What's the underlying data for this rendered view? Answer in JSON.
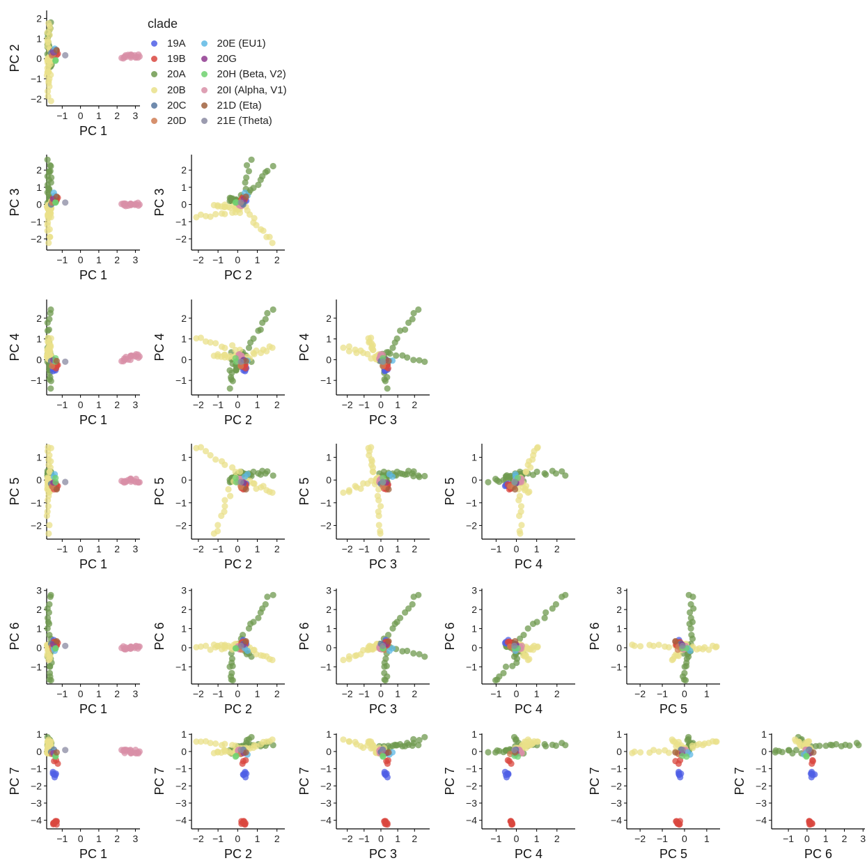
{
  "chart_data": {
    "type": "scatter",
    "layout": "lower-triangle pairs matrix",
    "legend": {
      "title": "clade",
      "placement": "top",
      "items": [
        {
          "name": "19A",
          "color": "#4f5fe6"
        },
        {
          "name": "19B",
          "color": "#d9473f"
        },
        {
          "name": "20A",
          "color": "#6f9a4f"
        },
        {
          "name": "20B",
          "color": "#e9e08a"
        },
        {
          "name": "20C",
          "color": "#56759f"
        },
        {
          "name": "20D",
          "color": "#cf7d54"
        },
        {
          "name": "20E (EU1)",
          "color": "#5eb8e4"
        },
        {
          "name": "20G",
          "color": "#8f3a8f"
        },
        {
          "name": "20H (Beta, V2)",
          "color": "#6fd16f"
        },
        {
          "name": "20I (Alpha, V1)",
          "color": "#d88fa7"
        },
        {
          "name": "21D (Eta)",
          "color": "#a0623d"
        },
        {
          "name": "21E (Theta)",
          "color": "#8a8aa1"
        }
      ]
    },
    "axes": {
      "PC 1": {
        "label": "PC 1",
        "lim": [
          -1.85,
          3.25
        ],
        "ticks": [
          -1,
          0,
          1,
          2,
          3
        ]
      },
      "PC 2": {
        "label": "PC 2",
        "lim": [
          -2.35,
          2.4
        ],
        "ticks": [
          -2,
          -1,
          0,
          1,
          2
        ]
      },
      "PC 3": {
        "label": "PC 3",
        "lim": [
          -2.65,
          2.9
        ],
        "ticks": [
          -2,
          -1,
          0,
          1,
          2
        ]
      },
      "PC 4": {
        "label": "PC 4",
        "lim": [
          -1.7,
          2.9
        ],
        "ticks": [
          -1,
          0,
          1,
          2
        ]
      },
      "PC 5": {
        "label": "PC 5",
        "lim": [
          -2.6,
          1.6
        ],
        "ticks": [
          -2,
          -1,
          0,
          1
        ]
      },
      "PC 6": {
        "label": "PC 6",
        "lim": [
          -1.9,
          3.1
        ],
        "ticks": [
          -1,
          0,
          1,
          2,
          3
        ]
      },
      "PC 7": {
        "label": "PC 7",
        "lim": [
          -4.5,
          1.05
        ],
        "ticks": [
          -4,
          -3,
          -2,
          -1,
          0,
          1
        ]
      }
    },
    "clusters": [
      {
        "clade": "20A",
        "centroid": [
          -1.7,
          0.0,
          0.0,
          0.0,
          0.3,
          0.2,
          0.4
        ],
        "arm": [
          0.0,
          1.75,
          2.2,
          2.4,
          0.0,
          2.6,
          0.0
        ],
        "n": 12
      },
      {
        "clade": "20A",
        "centroid": [
          -1.6,
          -0.3,
          0.3,
          0.3,
          0.0,
          -0.4,
          0.0
        ],
        "arm": [
          0.0,
          0.0,
          0.0,
          -1.6,
          0.0,
          -1.5,
          0.0
        ],
        "n": 10
      },
      {
        "clade": "20A",
        "centroid": [
          -1.7,
          0.2,
          0.1,
          0.3,
          0.2,
          0.0,
          0.1
        ],
        "arm": [
          0.0,
          0.4,
          2.5,
          -0.3,
          0.0,
          -0.4,
          0.7
        ],
        "n": 8
      },
      {
        "clade": "20A",
        "centroid": [
          -1.65,
          0.0,
          0.2,
          -0.1,
          0.1,
          0.1,
          0.1
        ],
        "arm": [
          0.0,
          0.0,
          0.0,
          -0.5,
          0.0,
          0.0,
          0.0
        ],
        "n": 10
      },
      {
        "clade": "20B",
        "centroid": [
          -1.7,
          0.1,
          -0.4,
          0.5,
          0.3,
          0.0,
          0.2
        ],
        "arm": [
          0.0,
          -2.1,
          -0.3,
          0.5,
          1.2,
          0.0,
          0.4
        ],
        "n": 10
      },
      {
        "clade": "20B",
        "centroid": [
          -1.75,
          -0.3,
          -0.1,
          0.2,
          -0.1,
          0.1,
          0.0
        ],
        "arm": [
          0.0,
          -0.8,
          0.0,
          0.0,
          -2.3,
          0.0,
          0.0
        ],
        "n": 10
      },
      {
        "clade": "20B",
        "centroid": [
          -1.7,
          0.2,
          0.1,
          0.0,
          0.0,
          0.2,
          0.1
        ],
        "arm": [
          0.0,
          1.5,
          -2.3,
          0.6,
          -0.5,
          -0.8,
          0.5
        ],
        "n": 12
      },
      {
        "clade": "20B",
        "centroid": [
          -1.7,
          0.0,
          -0.2,
          0.1,
          0.0,
          0.1,
          0.0
        ],
        "arm": [
          0.0,
          0.0,
          0.0,
          0.0,
          0.0,
          0.0,
          0.0
        ],
        "n": 14
      },
      {
        "clade": "20I (Alpha, V1)",
        "centroid": [
          2.3,
          0.1,
          0.0,
          0.0,
          0.0,
          0.0,
          0.0
        ],
        "arm": [
          0.9,
          0.0,
          0.0,
          0.2,
          0.0,
          0.0,
          0.0
        ],
        "n": 18
      },
      {
        "clade": "19A",
        "centroid": [
          -1.45,
          0.35,
          0.3,
          -0.45,
          -0.2,
          0.3,
          -1.25
        ],
        "arm": [
          0.0,
          0.0,
          0.0,
          0.0,
          0.0,
          0.0,
          -0.2
        ],
        "n": 6
      },
      {
        "clade": "19B",
        "centroid": [
          -1.4,
          0.3,
          0.3,
          -0.3,
          -0.3,
          0.2,
          -4.05
        ],
        "arm": [
          0.0,
          0.0,
          0.0,
          0.0,
          0.0,
          0.0,
          -0.2
        ],
        "n": 8
      },
      {
        "clade": "19B",
        "centroid": [
          -1.35,
          0.35,
          0.4,
          -0.35,
          -0.3,
          0.35,
          -0.6
        ],
        "arm": [
          0.0,
          0.0,
          0.0,
          0.0,
          0.0,
          0.0,
          0.0
        ],
        "n": 3
      },
      {
        "clade": "20C",
        "centroid": [
          -1.5,
          0.2,
          0.1,
          -0.1,
          -0.1,
          0.1,
          0.0
        ],
        "arm": [
          0.0,
          0.0,
          0.0,
          0.0,
          0.0,
          0.0,
          0.0
        ],
        "n": 2
      },
      {
        "clade": "20D",
        "centroid": [
          -1.5,
          0.1,
          0.2,
          -0.2,
          -0.2,
          0.0,
          -0.2
        ],
        "arm": [
          0.0,
          0.0,
          0.0,
          0.0,
          0.0,
          0.0,
          0.0
        ],
        "n": 2
      },
      {
        "clade": "20E (EU1)",
        "centroid": [
          -1.5,
          0.4,
          0.6,
          -0.1,
          0.2,
          -0.1,
          -0.1
        ],
        "arm": [
          0.0,
          0.0,
          0.0,
          0.0,
          0.0,
          0.0,
          0.0
        ],
        "n": 2
      },
      {
        "clade": "20G",
        "centroid": [
          -1.5,
          0.3,
          0.3,
          -0.1,
          -0.1,
          0.2,
          0.0
        ],
        "arm": [
          0.0,
          0.0,
          0.0,
          0.0,
          0.0,
          0.0,
          0.0
        ],
        "n": 1
      },
      {
        "clade": "20H (Beta, V2)",
        "centroid": [
          -1.35,
          0.0,
          0.1,
          0.0,
          0.0,
          -0.1,
          -0.2
        ],
        "arm": [
          0.0,
          0.0,
          0.0,
          0.0,
          0.0,
          0.0,
          0.0
        ],
        "n": 2
      },
      {
        "clade": "21D (Eta)",
        "centroid": [
          -1.4,
          0.5,
          0.5,
          0.0,
          -0.3,
          0.3,
          0.0
        ],
        "arm": [
          0.0,
          0.0,
          0.0,
          0.0,
          0.0,
          0.0,
          0.0
        ],
        "n": 1
      },
      {
        "clade": "21E (Theta)",
        "centroid": [
          -0.9,
          0.1,
          0.1,
          -0.2,
          0.0,
          0.1,
          0.0
        ],
        "arm": [
          0.0,
          0.0,
          0.0,
          0.0,
          0.0,
          0.0,
          0.0
        ],
        "n": 1
      }
    ]
  }
}
